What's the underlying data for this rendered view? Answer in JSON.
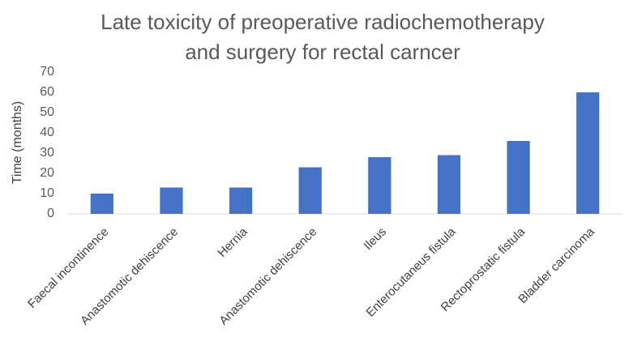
{
  "chart_data": {
    "type": "bar",
    "title": [
      "Late toxicity of preoperative radiochemotherapy",
      "and surgery for rectal carncer"
    ],
    "y_axis_label": "Time (months)",
    "categories": [
      "Faecal incontinence",
      "Anastomotic dehiscence",
      "Hernia",
      "Anastomotic dehiscence",
      "Ileus",
      "Enterocutaneus fistula",
      "Rectoprostatic fistula",
      "Bladder carcinoma"
    ],
    "values": [
      10,
      13,
      13,
      23,
      28,
      29,
      36,
      60
    ],
    "color": "#4472c4",
    "ylim": [
      0,
      70
    ],
    "yticks": [
      0,
      10,
      20,
      30,
      40,
      50,
      60,
      70
    ],
    "grid": false
  }
}
